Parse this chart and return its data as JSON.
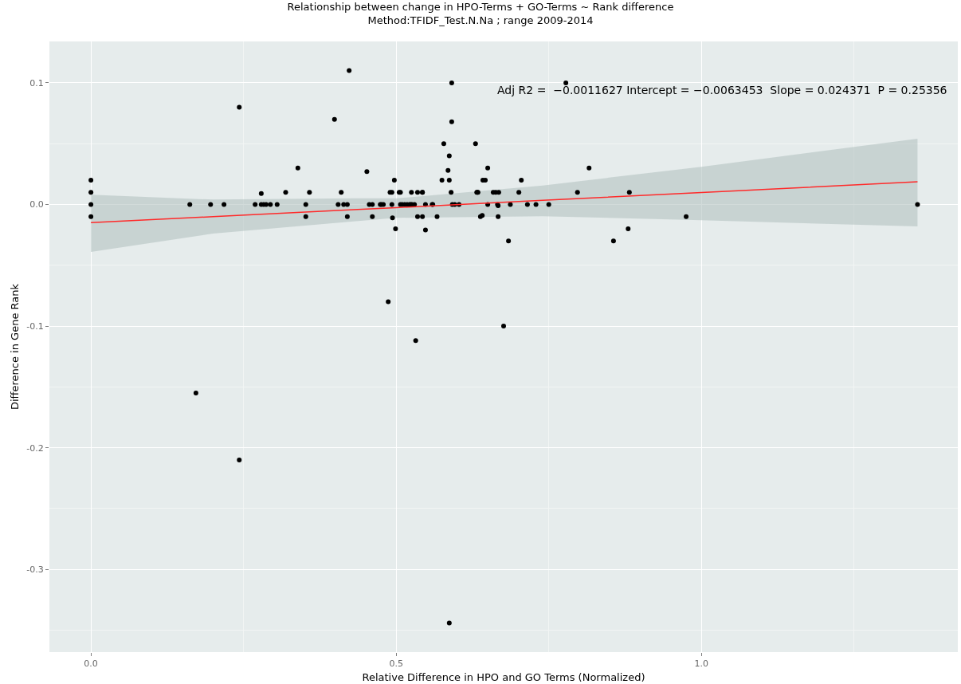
{
  "chart_data": {
    "type": "scatter",
    "title": "Relationship between change in HPO-Terms + GO-Terms ~ Rank difference",
    "subtitle": "Method:TFIDF_Test.N.Na ; range 2009-2014",
    "xlabel": "Relative Difference in HPO and GO Terms (Normalized)",
    "ylabel": "Difference in Gene Rank",
    "xlim": [
      -0.068,
      1.42
    ],
    "ylim": [
      -0.368,
      0.134
    ],
    "xticks": [
      {
        "value": 0,
        "label": "0.0"
      },
      0.5,
      {
        "value": 1,
        "label": "1.0"
      }
    ],
    "yticks": [
      -0.3,
      -0.2,
      -0.1,
      {
        "value": 0,
        "label": "0.0"
      },
      0.1
    ],
    "grid": true,
    "marker": "circle",
    "annotations": [
      "Adj R2 =  −0.0011627 Intercept = −0.0063453  Slope = 0.024371  P = 0.25356"
    ],
    "series": [
      {
        "color": "#000000",
        "x": [
          0,
          0,
          0,
          0,
          0.162,
          0.172,
          0.196,
          0.218,
          0.243,
          0.243,
          0.269,
          0.279,
          0.279,
          0.283,
          0.287,
          0.294,
          0.305,
          0.319,
          0.339,
          0.352,
          0.352,
          0.358,
          0.399,
          0.405,
          0.41,
          0.414,
          0.42,
          0.42,
          0.423,
          0.452,
          0.456,
          0.461,
          0.461,
          0.474,
          0.476,
          0.479,
          0.49,
          0.493,
          0.493,
          0.494,
          0.497,
          0.499,
          0.505,
          0.507,
          0.507,
          0.51,
          0.514,
          0.518,
          0.522,
          0.524,
          0.526,
          0.53,
          0.525,
          0.535,
          0.535,
          0.543,
          0.543,
          0.543,
          0.548,
          0.548,
          0.559,
          0.56,
          0.567,
          0.575,
          0.578,
          0.587,
          0.587,
          0.591,
          0.591,
          0.585,
          0.592,
          0.596,
          0.603,
          0.59,
          0.632,
          0.63,
          0.633,
          0.634,
          0.638,
          0.641,
          0.642,
          0.646,
          0.65,
          0.65,
          0.659,
          0.663,
          0.667,
          0.666,
          0.667,
          0.668,
          0.684,
          0.687,
          0.705,
          0.701,
          0.715,
          0.729,
          0.75,
          0.797,
          0.816,
          0.856,
          0.88,
          0.882,
          0.975,
          1.354,
          0.778,
          0.487,
          0.532,
          0.676,
          0.587
        ],
        "values": [
          0.02,
          0.01,
          0,
          -0.01,
          0,
          -0.155,
          0,
          0,
          0.08,
          -0.21,
          0,
          0.009,
          0,
          0,
          0,
          0,
          0,
          0.01,
          0.03,
          0,
          -0.01,
          0.01,
          0.07,
          0,
          0.01,
          0,
          0,
          -0.01,
          0.11,
          0.027,
          0,
          0,
          -0.01,
          0,
          0,
          0,
          0.01,
          0.01,
          0,
          -0.011,
          0.02,
          -0.02,
          0.01,
          0.01,
          0,
          0,
          0,
          0,
          0,
          0,
          0,
          0,
          0.01,
          -0.01,
          0.01,
          0.01,
          0.01,
          -0.01,
          -0.021,
          0,
          0,
          0,
          -0.01,
          0.02,
          0.05,
          0.04,
          0.02,
          0.1,
          0.068,
          0.028,
          0,
          0,
          0,
          0.01,
          0.01,
          0.05,
          0.01,
          0.01,
          -0.01,
          -0.009,
          0.02,
          0.02,
          0.03,
          0,
          0.01,
          0.01,
          -0.001,
          0,
          -0.01,
          0.01,
          -0.03,
          0,
          0.02,
          0.01,
          0,
          0,
          0,
          0.01,
          0.03,
          -0.03,
          -0.02,
          0.01,
          -0.01,
          0,
          0.1,
          -0.08,
          -0.112,
          -0.1,
          -0.344
        ]
      },
      {
        "type": "line",
        "marker": "none",
        "color": "#ff2a2a",
        "x": [
          0,
          0.2,
          0.43,
          0.5,
          0.74,
          1.0,
          1.354
        ],
        "values": [
          -0.015,
          -0.01,
          -0.0043,
          -0.0026,
          0.0034,
          0.0098,
          0.0186
        ],
        "lower": [
          -0.039,
          -0.024,
          -0.014,
          -0.011,
          -0.0097,
          -0.013,
          -0.018
        ],
        "upper": [
          0.008,
          0.004,
          0.005,
          0.005,
          0.0156,
          0.031,
          0.054
        ]
      }
    ]
  }
}
